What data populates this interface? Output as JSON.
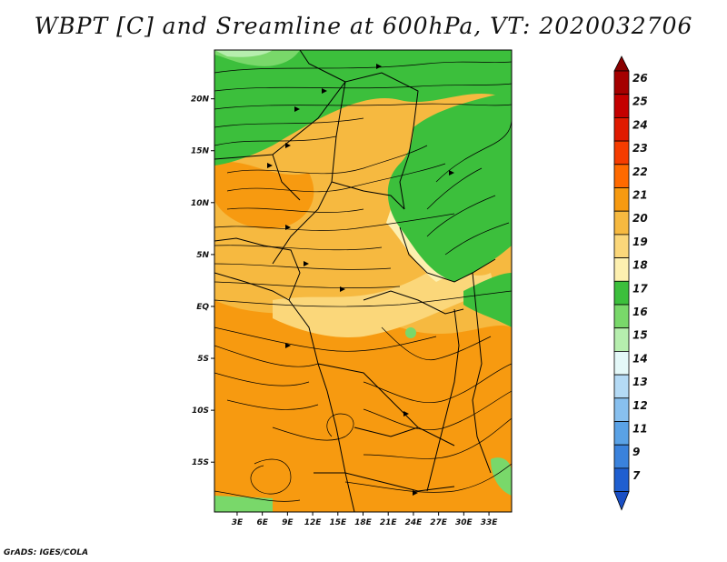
{
  "title": "WBPT [C] and Sreamline at 600hPa, VT: 2020032706",
  "credit": "GrADS: IGES/COLA",
  "axes": {
    "lat_ticks": [
      {
        "value": 20,
        "label": "20N"
      },
      {
        "value": 15,
        "label": "15N"
      },
      {
        "value": 10,
        "label": "10N"
      },
      {
        "value": 5,
        "label": "5N"
      },
      {
        "value": 0,
        "label": "EQ"
      },
      {
        "value": -5,
        "label": "5S"
      },
      {
        "value": -10,
        "label": "10S"
      },
      {
        "value": -15,
        "label": "15S"
      }
    ],
    "lon_ticks": [
      {
        "value": 3,
        "label": "3E"
      },
      {
        "value": 6,
        "label": "6E"
      },
      {
        "value": 9,
        "label": "9E"
      },
      {
        "value": 12,
        "label": "12E"
      },
      {
        "value": 15,
        "label": "15E"
      },
      {
        "value": 18,
        "label": "18E"
      },
      {
        "value": 21,
        "label": "21E"
      },
      {
        "value": 24,
        "label": "24E"
      },
      {
        "value": 27,
        "label": "27E"
      },
      {
        "value": 30,
        "label": "30E"
      },
      {
        "value": 33,
        "label": "33E"
      }
    ],
    "lon_range": [
      0.3,
      35.7
    ],
    "lat_range": [
      -19.8,
      24.7
    ]
  },
  "colorbar": {
    "levels": [
      {
        "label": "26",
        "color": "#a50000"
      },
      {
        "label": "25",
        "color": "#c40000"
      },
      {
        "label": "24",
        "color": "#e01a00"
      },
      {
        "label": "23",
        "color": "#f53c00"
      },
      {
        "label": "22",
        "color": "#ff6a00"
      },
      {
        "label": "21",
        "color": "#f79a10"
      },
      {
        "label": "20",
        "color": "#f6b940"
      },
      {
        "label": "19",
        "color": "#fbd77a"
      },
      {
        "label": "18",
        "color": "#fdf0b0"
      },
      {
        "label": "17",
        "color": "#3cbf3c"
      },
      {
        "label": "16",
        "color": "#79d86a"
      },
      {
        "label": "15",
        "color": "#b6eeae"
      },
      {
        "label": "14",
        "color": "#e4f8f8"
      },
      {
        "label": "13",
        "color": "#b4daf5"
      },
      {
        "label": "12",
        "color": "#88c0ef"
      },
      {
        "label": "11",
        "color": "#5aa2e6"
      },
      {
        "label": "9",
        "color": "#3a82dc"
      },
      {
        "label": "7",
        "color": "#1f5fd0"
      }
    ],
    "below_color": "#1a4fc4",
    "above_color": "#8a0000"
  },
  "field": {
    "regions": [
      {
        "name": "sahel-north-green",
        "color": "#3cbf3c"
      },
      {
        "name": "east-africa-green",
        "color": "#3cbf3c"
      },
      {
        "name": "west-central-orange",
        "color": "#f6b940"
      },
      {
        "name": "southern-orange",
        "color": "#f79a10"
      },
      {
        "name": "coastal-green",
        "color": "#79d86a"
      }
    ]
  },
  "streamline_color": "#000000"
}
